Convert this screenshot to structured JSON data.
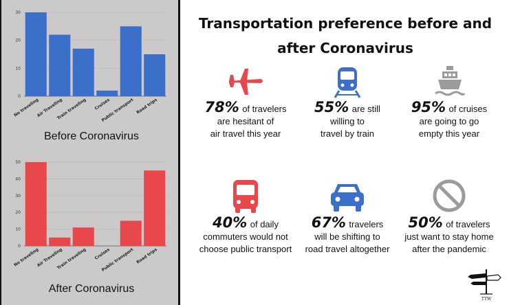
{
  "title": "Transportation preference before and after Coronavirus",
  "colors": {
    "before": "#3b6fc9",
    "after": "#e8484b",
    "icon_red": "#e8484b",
    "icon_blue": "#3b6fc9",
    "icon_gray": "#9c9b9c"
  },
  "chart_data": [
    {
      "type": "bar",
      "caption": "Before Coronavirus",
      "categories": [
        "No traveling",
        "Air Traveling",
        "Train traveling",
        "Cruises",
        "Public transport",
        "Road trips"
      ],
      "values": [
        30,
        22,
        17,
        2,
        25,
        15
      ],
      "ylim": [
        0,
        30
      ],
      "yticks": [
        0,
        10,
        20,
        30
      ],
      "grid": true
    },
    {
      "type": "bar",
      "caption": "After Coronavirus",
      "categories": [
        "No traveling",
        "Air Traveling",
        "Train traveling",
        "Cruises",
        "Public transport",
        "Road trips"
      ],
      "values": [
        50,
        5,
        11,
        0,
        15,
        45
      ],
      "ylim": [
        0,
        50
      ],
      "yticks": [
        0,
        10,
        20,
        30,
        40,
        50
      ],
      "grid": true
    }
  ],
  "stats": [
    {
      "icon": "airplane-icon",
      "percent": "78%",
      "line1": "of travelers",
      "rest": "are hesitant of\nair travel this year"
    },
    {
      "icon": "train-icon",
      "percent": "55%",
      "line1": "are still",
      "rest": "willing to\ntravel by train"
    },
    {
      "icon": "ship-icon",
      "percent": "95%",
      "line1": "of cruises",
      "rest": "are going to go\nempty this year"
    },
    {
      "icon": "bus-icon",
      "percent": "40%",
      "line1": "of daily",
      "rest": "commuters would not\nchoose public transport"
    },
    {
      "icon": "car-icon",
      "percent": "67%",
      "line1": "travelers",
      "rest": "will be shifting to\nroad travel altogether"
    },
    {
      "icon": "no-sign-icon",
      "percent": "50%",
      "line1": "of travelers",
      "rest": "just want to stay home\nafter the pandemic"
    }
  ],
  "logo_text": "TTW"
}
